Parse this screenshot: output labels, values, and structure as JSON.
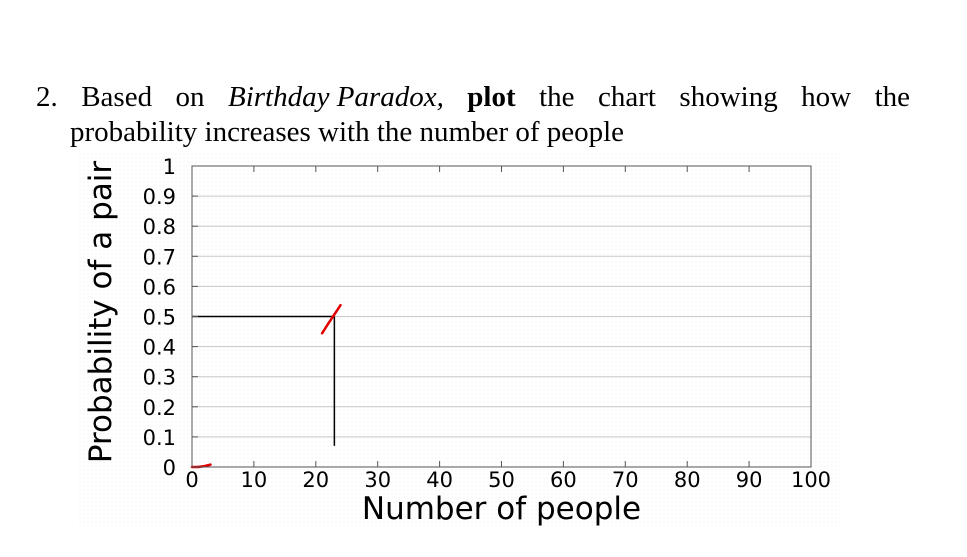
{
  "question": {
    "number": "2.",
    "w_based": "Based",
    "w_on": "on",
    "w_title": "Birthday Paradox,",
    "w_plot": "plot",
    "w_the1": "the",
    "w_chart": "chart",
    "w_showing": "showing",
    "w_how": "how",
    "w_the2": "the",
    "line2": "probability increases with the number of people"
  },
  "chart_data": {
    "type": "line",
    "xlabel": "Number of people",
    "ylabel": "Probability of a pair",
    "xlim": [
      0,
      100
    ],
    "ylim": [
      0,
      1
    ],
    "x_ticks": [
      "0",
      "10",
      "20",
      "30",
      "40",
      "50",
      "60",
      "70",
      "80",
      "90",
      "100"
    ],
    "y_ticks": [
      "0",
      "0.1",
      "0.2",
      "0.3",
      "0.4",
      "0.5",
      "0.6",
      "0.7",
      "0.8",
      "0.9",
      "1"
    ],
    "grid": true,
    "series": [
      {
        "color": "#e00000",
        "points": [
          [
            0,
            0
          ],
          [
            1,
            0
          ],
          [
            2,
            0.003
          ],
          [
            3,
            0.008
          ],
          [
            21,
            0.444
          ],
          [
            22,
            0.476
          ],
          [
            23,
            0.507
          ],
          [
            24,
            0.538
          ]
        ]
      }
    ],
    "marker_lines": {
      "color": "#000000",
      "x": 23,
      "y": 0.5,
      "y_bottom": 0.07
    }
  }
}
